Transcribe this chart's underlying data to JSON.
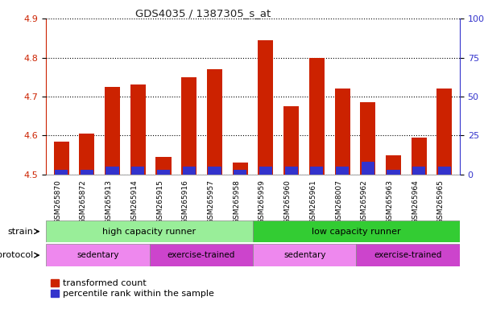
{
  "title": "GDS4035 / 1387305_s_at",
  "samples": [
    "GSM265870",
    "GSM265872",
    "GSM265913",
    "GSM265914",
    "GSM265915",
    "GSM265916",
    "GSM265957",
    "GSM265958",
    "GSM265959",
    "GSM265960",
    "GSM265961",
    "GSM268007",
    "GSM265962",
    "GSM265963",
    "GSM265964",
    "GSM265965"
  ],
  "transformed_count": [
    4.585,
    4.605,
    4.725,
    4.73,
    4.545,
    4.75,
    4.77,
    4.53,
    4.845,
    4.675,
    4.8,
    4.72,
    4.685,
    4.55,
    4.595,
    4.72
  ],
  "percentile_rank": [
    3,
    3,
    5,
    5,
    3,
    5,
    5,
    3,
    5,
    5,
    5,
    5,
    8,
    3,
    5,
    5
  ],
  "ylim_left": [
    4.5,
    4.9
  ],
  "ylim_right": [
    0,
    100
  ],
  "yticks_left": [
    4.5,
    4.6,
    4.7,
    4.8,
    4.9
  ],
  "yticks_right": [
    0,
    25,
    50,
    75,
    100
  ],
  "bar_color_red": "#cc2200",
  "bar_color_blue": "#3333cc",
  "bg_color": "#ffffff",
  "plot_bg": "#ffffff",
  "grid_color": "#000000",
  "strain_groups": [
    {
      "label": "high capacity runner",
      "start": 0,
      "end": 8,
      "color": "#99ee99"
    },
    {
      "label": "low capacity runner",
      "start": 8,
      "end": 16,
      "color": "#33cc33"
    }
  ],
  "protocol_groups": [
    {
      "label": "sedentary",
      "start": 0,
      "end": 4,
      "color": "#ee88ee"
    },
    {
      "label": "exercise-trained",
      "start": 4,
      "end": 8,
      "color": "#cc44cc"
    },
    {
      "label": "sedentary",
      "start": 8,
      "end": 12,
      "color": "#ee88ee"
    },
    {
      "label": "exercise-trained",
      "start": 12,
      "end": 16,
      "color": "#cc44cc"
    }
  ],
  "legend_red_label": "transformed count",
  "legend_blue_label": "percentile rank within the sample",
  "left_axis_color": "#cc2200",
  "right_axis_color": "#3333cc",
  "bar_width": 0.6
}
